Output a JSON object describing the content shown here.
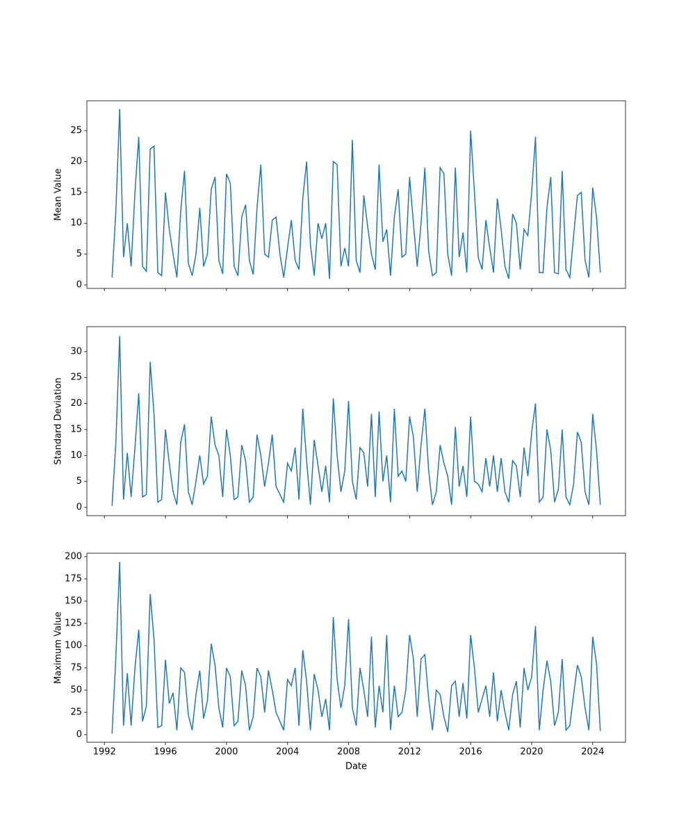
{
  "chart_data": [
    {
      "type": "line",
      "ylabel": "Mean Value",
      "color": "#1f77b4",
      "x": [
        1992.5,
        1992.75,
        1993,
        1993.25,
        1993.5,
        1993.75,
        1994,
        1994.25,
        1994.5,
        1994.75,
        1995,
        1995.25,
        1995.5,
        1995.75,
        1996,
        1996.25,
        1996.5,
        1996.75,
        1997,
        1997.25,
        1997.5,
        1997.75,
        1998,
        1998.25,
        1998.5,
        1998.75,
        1999,
        1999.25,
        1999.5,
        1999.75,
        2000,
        2000.25,
        2000.5,
        2000.75,
        2001,
        2001.25,
        2001.5,
        2001.75,
        2002,
        2002.25,
        2002.5,
        2002.75,
        2003,
        2003.25,
        2003.5,
        2003.75,
        2004,
        2004.25,
        2004.5,
        2004.75,
        2005,
        2005.25,
        2005.5,
        2005.75,
        2006,
        2006.25,
        2006.5,
        2006.75,
        2007,
        2007.25,
        2007.5,
        2007.75,
        2008,
        2008.25,
        2008.5,
        2008.75,
        2009,
        2009.25,
        2009.5,
        2009.75,
        2010,
        2010.25,
        2010.5,
        2010.75,
        2011,
        2011.25,
        2011.5,
        2011.75,
        2012,
        2012.25,
        2012.5,
        2012.75,
        2013,
        2013.25,
        2013.5,
        2013.75,
        2014,
        2014.25,
        2014.5,
        2014.75,
        2015,
        2015.25,
        2015.5,
        2015.75,
        2016,
        2016.25,
        2016.5,
        2016.75,
        2017,
        2017.25,
        2017.5,
        2017.75,
        2018,
        2018.25,
        2018.5,
        2018.75,
        2019,
        2019.25,
        2019.5,
        2019.75,
        2020,
        2020.25,
        2020.5,
        2020.75,
        2021,
        2021.25,
        2021.5,
        2021.75,
        2022,
        2022.25,
        2022.5,
        2022.75,
        2023,
        2023.25,
        2023.5,
        2023.75,
        2024,
        2024.25,
        2024.5
      ],
      "values": [
        1.2,
        12,
        28.5,
        4.5,
        10,
        3,
        15,
        24,
        3,
        2.2,
        22,
        22.5,
        2,
        1.5,
        15,
        9,
        5,
        1.2,
        12,
        18.5,
        3.5,
        1.5,
        5,
        12.5,
        3,
        5,
        15.5,
        17.5,
        4,
        1.8,
        18,
        16.5,
        3,
        1.5,
        11,
        13,
        4,
        1.7,
        12.5,
        19.5,
        5,
        4.5,
        10.5,
        11,
        5,
        1.2,
        6,
        10.5,
        4,
        2.5,
        14,
        20,
        6.5,
        1.5,
        10,
        7.5,
        10,
        1,
        20,
        19.5,
        3,
        6,
        3,
        23.5,
        4,
        2,
        14.5,
        9.5,
        5,
        2.5,
        19.5,
        7,
        9,
        1.5,
        11,
        15.5,
        4.5,
        5,
        17.5,
        10,
        3,
        10,
        19,
        5.5,
        1.5,
        2,
        19,
        18,
        5,
        1.5,
        19,
        4.5,
        8.5,
        2,
        25,
        15,
        4.5,
        2.5,
        10.5,
        6,
        2,
        14,
        9,
        3,
        1,
        11.5,
        10,
        2.5,
        9,
        8,
        15,
        24,
        2,
        2,
        12.5,
        17.5,
        2,
        1.8,
        18.5,
        2.5,
        1.2,
        8,
        14.5,
        15,
        4,
        1.2,
        15.8,
        11,
        2
      ],
      "xlim": [
        1990.85,
        2026.15
      ],
      "xticks": [
        1992,
        1996,
        2000,
        2004,
        2008,
        2012,
        2016,
        2020,
        2024
      ],
      "ylim": [
        -0.56,
        29.84
      ],
      "yticks": [
        0,
        5,
        10,
        15,
        20,
        25
      ]
    },
    {
      "type": "line",
      "ylabel": "Standard Deviation",
      "color": "#1f77b4",
      "x": [
        1992.5,
        1992.75,
        1993,
        1993.25,
        1993.5,
        1993.75,
        1994,
        1994.25,
        1994.5,
        1994.75,
        1995,
        1995.25,
        1995.5,
        1995.75,
        1996,
        1996.25,
        1996.5,
        1996.75,
        1997,
        1997.25,
        1997.5,
        1997.75,
        1998,
        1998.25,
        1998.5,
        1998.75,
        1999,
        1999.25,
        1999.5,
        1999.75,
        2000,
        2000.25,
        2000.5,
        2000.75,
        2001,
        2001.25,
        2001.5,
        2001.75,
        2002,
        2002.25,
        2002.5,
        2002.75,
        2003,
        2003.25,
        2003.5,
        2003.75,
        2004,
        2004.25,
        2004.5,
        2004.75,
        2005,
        2005.25,
        2005.5,
        2005.75,
        2006,
        2006.25,
        2006.5,
        2006.75,
        2007,
        2007.25,
        2007.5,
        2007.75,
        2008,
        2008.25,
        2008.5,
        2008.75,
        2009,
        2009.25,
        2009.5,
        2009.75,
        2010,
        2010.25,
        2010.5,
        2010.75,
        2011,
        2011.25,
        2011.5,
        2011.75,
        2012,
        2012.25,
        2012.5,
        2012.75,
        2013,
        2013.25,
        2013.5,
        2013.75,
        2014,
        2014.25,
        2014.5,
        2014.75,
        2015,
        2015.25,
        2015.5,
        2015.75,
        2016,
        2016.25,
        2016.5,
        2016.75,
        2017,
        2017.25,
        2017.5,
        2017.75,
        2018,
        2018.25,
        2018.5,
        2018.75,
        2019,
        2019.25,
        2019.5,
        2019.75,
        2020,
        2020.25,
        2020.5,
        2020.75,
        2021,
        2021.25,
        2021.5,
        2021.75,
        2022,
        2022.25,
        2022.5,
        2022.75,
        2023,
        2023.25,
        2023.5,
        2023.75,
        2024,
        2024.25,
        2024.5
      ],
      "values": [
        0.3,
        12.5,
        33,
        1.5,
        10.5,
        2,
        11.5,
        22,
        2,
        2.5,
        28,
        18,
        1,
        1.5,
        15,
        8.5,
        3,
        0.5,
        12.5,
        16,
        3,
        0.5,
        5,
        10,
        4.5,
        6,
        17.5,
        12,
        10,
        2,
        15,
        10,
        1.5,
        2,
        12,
        9,
        1,
        2,
        14,
        10,
        4,
        8.5,
        14,
        4,
        2.5,
        1,
        8.5,
        7,
        11.5,
        1.5,
        19,
        9,
        0.5,
        13,
        8,
        3,
        8,
        1,
        21,
        10,
        3,
        7,
        20.5,
        5,
        1.5,
        11.5,
        10.5,
        4,
        18,
        2,
        18.5,
        5,
        10,
        1,
        19,
        6,
        7,
        5,
        17.5,
        13.5,
        3,
        12,
        19,
        7,
        0.5,
        3,
        12,
        8.5,
        6,
        0.5,
        15.5,
        4,
        8,
        2,
        17.5,
        5,
        4.5,
        3,
        9.5,
        4,
        10,
        3,
        9.5,
        3,
        1,
        9,
        8,
        2,
        11.5,
        6,
        14.5,
        20,
        1,
        2,
        15,
        11,
        1,
        3.5,
        15,
        2,
        0.5,
        4.5,
        14.5,
        12.5,
        3,
        0.5,
        18,
        11,
        0.5
      ],
      "xlim": [
        1990.85,
        2026.15
      ],
      "xticks": [
        1992,
        1996,
        2000,
        2004,
        2008,
        2012,
        2016,
        2020,
        2024
      ],
      "ylim": [
        -1.6,
        34.8
      ],
      "yticks": [
        0,
        5,
        10,
        15,
        20,
        25,
        30
      ]
    },
    {
      "type": "line",
      "ylabel": "Maximum Value",
      "xlabel": "Date",
      "color": "#1f77b4",
      "x": [
        1992.5,
        1992.75,
        1993,
        1993.25,
        1993.5,
        1993.75,
        1994,
        1994.25,
        1994.5,
        1994.75,
        1995,
        1995.25,
        1995.5,
        1995.75,
        1996,
        1996.25,
        1996.5,
        1996.75,
        1997,
        1997.25,
        1997.5,
        1997.75,
        1998,
        1998.25,
        1998.5,
        1998.75,
        1999,
        1999.25,
        1999.5,
        1999.75,
        2000,
        2000.25,
        2000.5,
        2000.75,
        2001,
        2001.25,
        2001.5,
        2001.75,
        2002,
        2002.25,
        2002.5,
        2002.75,
        2003,
        2003.25,
        2003.5,
        2003.75,
        2004,
        2004.25,
        2004.5,
        2004.75,
        2005,
        2005.25,
        2005.5,
        2005.75,
        2006,
        2006.25,
        2006.5,
        2006.75,
        2007,
        2007.25,
        2007.5,
        2007.75,
        2008,
        2008.25,
        2008.5,
        2008.75,
        2009,
        2009.25,
        2009.5,
        2009.75,
        2010,
        2010.25,
        2010.5,
        2010.75,
        2011,
        2011.25,
        2011.5,
        2011.75,
        2012,
        2012.25,
        2012.5,
        2012.75,
        2013,
        2013.25,
        2013.5,
        2013.75,
        2014,
        2014.25,
        2014.5,
        2014.75,
        2015,
        2015.25,
        2015.5,
        2015.75,
        2016,
        2016.25,
        2016.5,
        2016.75,
        2017,
        2017.25,
        2017.5,
        2017.75,
        2018,
        2018.25,
        2018.5,
        2018.75,
        2019,
        2019.25,
        2019.5,
        2019.75,
        2020,
        2020.25,
        2020.5,
        2020.75,
        2021,
        2021.25,
        2021.5,
        2021.75,
        2022,
        2022.25,
        2022.5,
        2022.75,
        2023,
        2023.25,
        2023.5,
        2023.75,
        2024,
        2024.25,
        2024.5
      ],
      "values": [
        1,
        87,
        194,
        10,
        69,
        10,
        75,
        118,
        15,
        32,
        158,
        107,
        8,
        10,
        84,
        35,
        47,
        5,
        75,
        70,
        22,
        5,
        45,
        72,
        18,
        38,
        102,
        78,
        30,
        8,
        75,
        65,
        10,
        15,
        72,
        55,
        5,
        20,
        75,
        65,
        25,
        72,
        50,
        25,
        15,
        5,
        62,
        55,
        75,
        10,
        95,
        60,
        5,
        68,
        50,
        20,
        40,
        5,
        132,
        62,
        30,
        55,
        130,
        30,
        10,
        75,
        50,
        20,
        110,
        8,
        55,
        25,
        112,
        5,
        55,
        20,
        25,
        50,
        112,
        85,
        20,
        85,
        90,
        40,
        5,
        50,
        45,
        20,
        3,
        55,
        60,
        20,
        58,
        18,
        112,
        75,
        25,
        40,
        55,
        20,
        70,
        15,
        50,
        25,
        5,
        45,
        60,
        8,
        75,
        50,
        65,
        122,
        5,
        50,
        83,
        60,
        10,
        25,
        85,
        5,
        10,
        45,
        78,
        65,
        30,
        5,
        110,
        80,
        4
      ],
      "xlim": [
        1990.85,
        2026.15
      ],
      "xticks": [
        1992,
        1996,
        2000,
        2004,
        2008,
        2012,
        2016,
        2020,
        2024
      ],
      "ylim": [
        -8.6,
        203.9
      ],
      "yticks": [
        0,
        25,
        50,
        75,
        100,
        125,
        150,
        175,
        200
      ]
    }
  ]
}
